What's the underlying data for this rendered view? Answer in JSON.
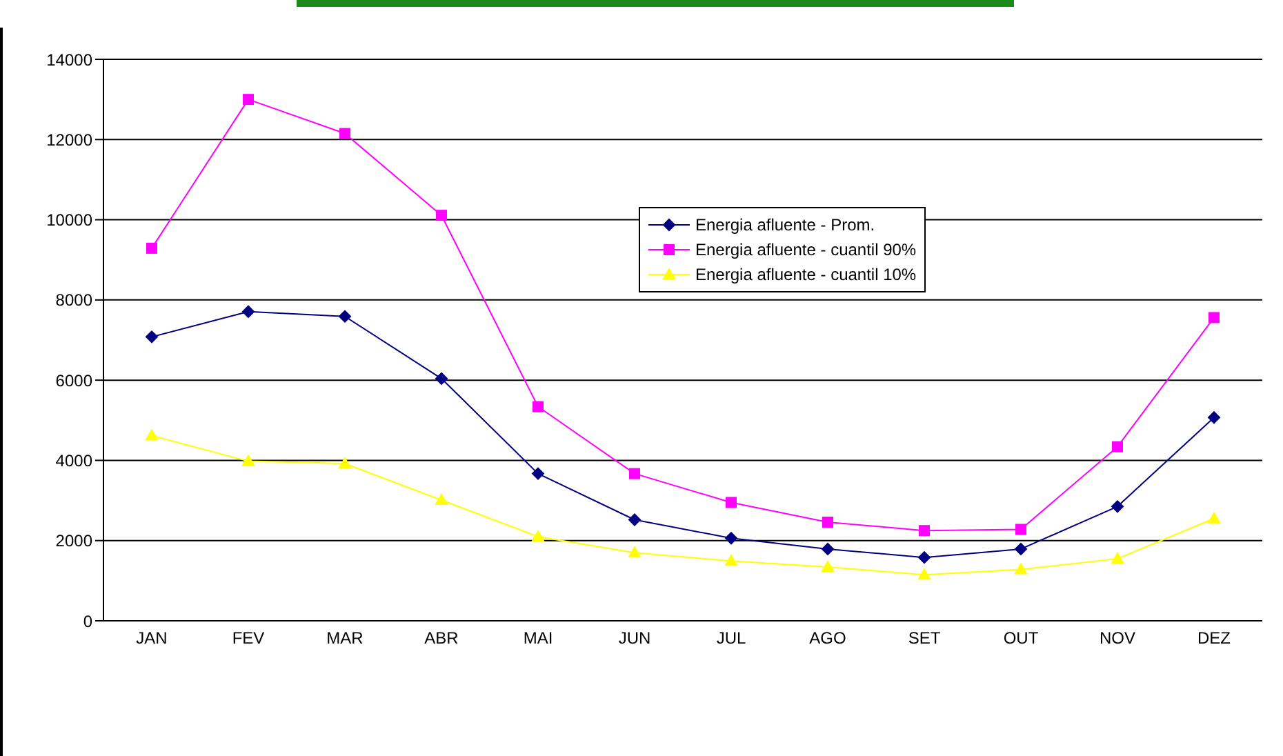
{
  "chart_data": {
    "type": "line",
    "categories": [
      "JAN",
      "FEV",
      "MAR",
      "ABR",
      "MAI",
      "JUN",
      "JUL",
      "AGO",
      "SET",
      "OUT",
      "NOV",
      "DEZ"
    ],
    "series": [
      {
        "name": "Energia afluente - Prom.",
        "color": "#000080",
        "marker": "diamond",
        "values": [
          7080,
          7710,
          7590,
          6040,
          3670,
          2520,
          2060,
          1790,
          1580,
          1790,
          2850,
          5070
        ]
      },
      {
        "name": "Energia afluente - cuantil 90%",
        "color": "#ff00ff",
        "marker": "square",
        "values": [
          9290,
          13000,
          12150,
          10110,
          5340,
          3670,
          2950,
          2460,
          2250,
          2280,
          4340,
          7560
        ]
      },
      {
        "name": "Energia afluente - cuantil 10%",
        "color": "#ffff00",
        "marker": "triangle",
        "values": [
          4620,
          3980,
          3920,
          3010,
          2100,
          1700,
          1490,
          1340,
          1150,
          1280,
          1550,
          2550
        ]
      }
    ],
    "ylim": [
      0,
      14000
    ],
    "yticks": [
      0,
      2000,
      4000,
      6000,
      8000,
      10000,
      12000,
      14000
    ],
    "grid": "y",
    "legend": "top right",
    "line_style": "solid"
  }
}
